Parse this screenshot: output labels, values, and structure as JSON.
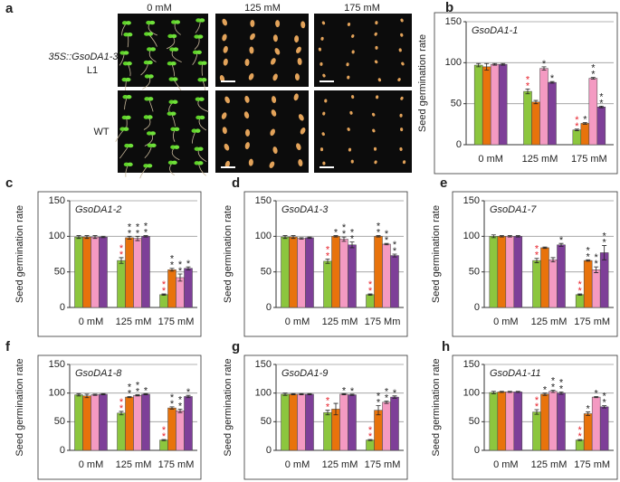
{
  "photo_panel": {
    "letter": "a",
    "columns": [
      "0 mM",
      "125 mM",
      "175 mM"
    ],
    "rows": [
      {
        "label": "35S::GsoDA1-3",
        "sublabel": "L1"
      },
      {
        "label": "WT"
      }
    ]
  },
  "chart_data": [
    {
      "type": "bar",
      "letter": "b",
      "title": "GsoDA1-1",
      "ylabel": "Seed germination rate",
      "categories": [
        "0 mM",
        "125 mM",
        "175 mM"
      ],
      "ylim": [
        0,
        150
      ],
      "yticks": [
        0,
        50,
        100,
        150
      ],
      "grid": true,
      "series": [
        {
          "color": "#8cc63e",
          "values": [
            97,
            65,
            18
          ],
          "errors": [
            2,
            3,
            1
          ],
          "stars": [
            null,
            "**",
            "**"
          ],
          "star_color": "#e8202a"
        },
        {
          "color": "#e8730c",
          "values": [
            95,
            52,
            26
          ],
          "errors": [
            4,
            2,
            1
          ],
          "stars": [
            null,
            null,
            "*"
          ],
          "star_color": "#222222"
        },
        {
          "color": "#f49ac2",
          "values": [
            98,
            93,
            81
          ],
          "errors": [
            1,
            2,
            1
          ],
          "stars": [
            null,
            "*",
            "**"
          ],
          "star_color": "#222222"
        },
        {
          "color": "#7e3f98",
          "values": [
            98,
            76,
            46
          ],
          "errors": [
            1,
            1,
            1
          ],
          "stars": [
            null,
            "*",
            "**"
          ],
          "star_color": "#222222"
        }
      ]
    },
    {
      "type": "bar",
      "letter": "c",
      "title": "GsoDA1-2",
      "ylabel": "Seed germination rate",
      "categories": [
        "0 mM",
        "125 mM",
        "175 mM"
      ],
      "ylim": [
        0,
        150
      ],
      "yticks": [
        0,
        50,
        100,
        150
      ],
      "grid": true,
      "series": [
        {
          "color": "#8cc63e",
          "values": [
            99,
            66,
            18
          ],
          "errors": [
            2,
            4,
            1
          ],
          "stars": [
            null,
            "**",
            "**"
          ],
          "star_color": "#e8202a"
        },
        {
          "color": "#e8730c",
          "values": [
            99,
            98,
            53
          ],
          "errors": [
            2,
            2,
            2
          ],
          "stars": [
            null,
            "**",
            "**"
          ],
          "star_color": "#222222"
        },
        {
          "color": "#f49ac2",
          "values": [
            99,
            97,
            42
          ],
          "errors": [
            2,
            3,
            5
          ],
          "stars": [
            null,
            "**",
            "**"
          ],
          "star_color": "#222222"
        },
        {
          "color": "#7e3f98",
          "values": [
            99,
            100,
            55
          ],
          "errors": [
            1,
            1,
            2
          ],
          "stars": [
            null,
            "**",
            "*"
          ],
          "star_color": "#222222"
        }
      ]
    },
    {
      "type": "bar",
      "letter": "d",
      "title": "GsoDA1-3",
      "ylabel": "Seed germination rate",
      "categories": [
        "0 mM",
        "125 mM",
        "175 Mm"
      ],
      "ylim": [
        0,
        150
      ],
      "yticks": [
        0,
        50,
        100,
        150
      ],
      "grid": true,
      "series": [
        {
          "color": "#8cc63e",
          "values": [
            99,
            65,
            18
          ],
          "errors": [
            2,
            3,
            1
          ],
          "stars": [
            null,
            "**",
            "**"
          ],
          "star_color": "#e8202a"
        },
        {
          "color": "#e8730c",
          "values": [
            99,
            100,
            100
          ],
          "errors": [
            2,
            1,
            1
          ],
          "stars": [
            null,
            "*",
            "**"
          ],
          "star_color": "#222222"
        },
        {
          "color": "#f49ac2",
          "values": [
            97,
            96,
            89
          ],
          "errors": [
            1,
            3,
            1
          ],
          "stars": [
            null,
            "**",
            "**"
          ],
          "star_color": "#222222"
        },
        {
          "color": "#7e3f98",
          "values": [
            98,
            88,
            73
          ],
          "errors": [
            1,
            4,
            2
          ],
          "stars": [
            null,
            "**",
            "**"
          ],
          "star_color": "#222222"
        }
      ]
    },
    {
      "type": "bar",
      "letter": "e",
      "title": "GsoDA1-7",
      "ylabel": "Seed germination rate",
      "categories": [
        "0 mM",
        "125 mM",
        "175 mM"
      ],
      "ylim": [
        0,
        150
      ],
      "yticks": [
        0,
        50,
        100,
        150
      ],
      "grid": true,
      "series": [
        {
          "color": "#8cc63e",
          "values": [
            100,
            66,
            18
          ],
          "errors": [
            2,
            3,
            1
          ],
          "stars": [
            null,
            "**",
            "**"
          ],
          "star_color": "#e8202a"
        },
        {
          "color": "#e8730c",
          "values": [
            100,
            84,
            66
          ],
          "errors": [
            1,
            1,
            1
          ],
          "stars": [
            null,
            null,
            "**"
          ],
          "star_color": "#222222"
        },
        {
          "color": "#f49ac2",
          "values": [
            100,
            67,
            53
          ],
          "errors": [
            1,
            3,
            4
          ],
          "stars": [
            null,
            null,
            "**"
          ],
          "star_color": "#222222"
        },
        {
          "color": "#7e3f98",
          "values": [
            100,
            88,
            77
          ],
          "errors": [
            1,
            2,
            10
          ],
          "stars": [
            null,
            "*",
            "**"
          ],
          "star_color": "#222222"
        }
      ]
    },
    {
      "type": "bar",
      "letter": "f",
      "title": "GsoDA1-8",
      "ylabel": "Seed germination rate",
      "categories": [
        "0  mM",
        "125 mM",
        "175 mM"
      ],
      "ylim": [
        0,
        150
      ],
      "yticks": [
        0,
        50,
        100,
        150
      ],
      "grid": true,
      "series": [
        {
          "color": "#8cc63e",
          "values": [
            97,
            65,
            18
          ],
          "errors": [
            2,
            3,
            1
          ],
          "stars": [
            null,
            "**",
            "**"
          ],
          "star_color": "#e8202a"
        },
        {
          "color": "#e8730c",
          "values": [
            95,
            93,
            74
          ],
          "errors": [
            3,
            1,
            2
          ],
          "stars": [
            null,
            "**",
            "**"
          ],
          "star_color": "#222222"
        },
        {
          "color": "#f49ac2",
          "values": [
            97,
            96,
            69
          ],
          "errors": [
            1,
            1,
            3
          ],
          "stars": [
            null,
            "**",
            "**"
          ],
          "star_color": "#222222"
        },
        {
          "color": "#7e3f98",
          "values": [
            98,
            98,
            94
          ],
          "errors": [
            1,
            1,
            2
          ],
          "stars": [
            null,
            "*",
            "*"
          ],
          "star_color": "#222222"
        }
      ]
    },
    {
      "type": "bar",
      "letter": "g",
      "title": "GsoDA1-9",
      "ylabel": "Seed germination rate",
      "categories": [
        "0 mM",
        "125 mM",
        "175 mM"
      ],
      "ylim": [
        0,
        150
      ],
      "yticks": [
        0,
        50,
        100,
        150
      ],
      "grid": true,
      "series": [
        {
          "color": "#8cc63e",
          "values": [
            98,
            66,
            18
          ],
          "errors": [
            2,
            4,
            1
          ],
          "stars": [
            null,
            "**",
            "**"
          ],
          "star_color": "#e8202a"
        },
        {
          "color": "#e8730c",
          "values": [
            98,
            72,
            70
          ],
          "errors": [
            1,
            10,
            8
          ],
          "stars": [
            null,
            null,
            "**"
          ],
          "star_color": "#222222"
        },
        {
          "color": "#f49ac2",
          "values": [
            98,
            98,
            84
          ],
          "errors": [
            1,
            1,
            2
          ],
          "stars": [
            null,
            "*",
            "**"
          ],
          "star_color": "#222222"
        },
        {
          "color": "#7e3f98",
          "values": [
            98,
            97,
            93
          ],
          "errors": [
            1,
            1,
            2
          ],
          "stars": [
            null,
            "*",
            "*"
          ],
          "star_color": "#222222"
        }
      ]
    },
    {
      "type": "bar",
      "letter": "h",
      "title": "GsoDA1-11",
      "ylabel": "Seed germination rate",
      "categories": [
        "0 mM",
        "125 mM",
        "175 mM"
      ],
      "ylim": [
        0,
        150
      ],
      "yticks": [
        0,
        50,
        100,
        150
      ],
      "grid": true,
      "series": [
        {
          "color": "#8cc63e",
          "values": [
            101,
            67,
            18
          ],
          "errors": [
            2,
            4,
            1
          ],
          "stars": [
            null,
            "**",
            "**"
          ],
          "star_color": "#e8202a"
        },
        {
          "color": "#e8730c",
          "values": [
            102,
            98,
            64
          ],
          "errors": [
            1,
            2,
            3
          ],
          "stars": [
            null,
            "*",
            "*"
          ],
          "star_color": "#222222"
        },
        {
          "color": "#f49ac2",
          "values": [
            102,
            103,
            93
          ],
          "errors": [
            1,
            2,
            1
          ],
          "stars": [
            null,
            "**",
            "*"
          ],
          "star_color": "#222222"
        },
        {
          "color": "#7e3f98",
          "values": [
            102,
            100,
            76
          ],
          "errors": [
            1,
            2,
            2
          ],
          "stars": [
            null,
            "**",
            "**"
          ],
          "star_color": "#222222"
        }
      ]
    }
  ]
}
